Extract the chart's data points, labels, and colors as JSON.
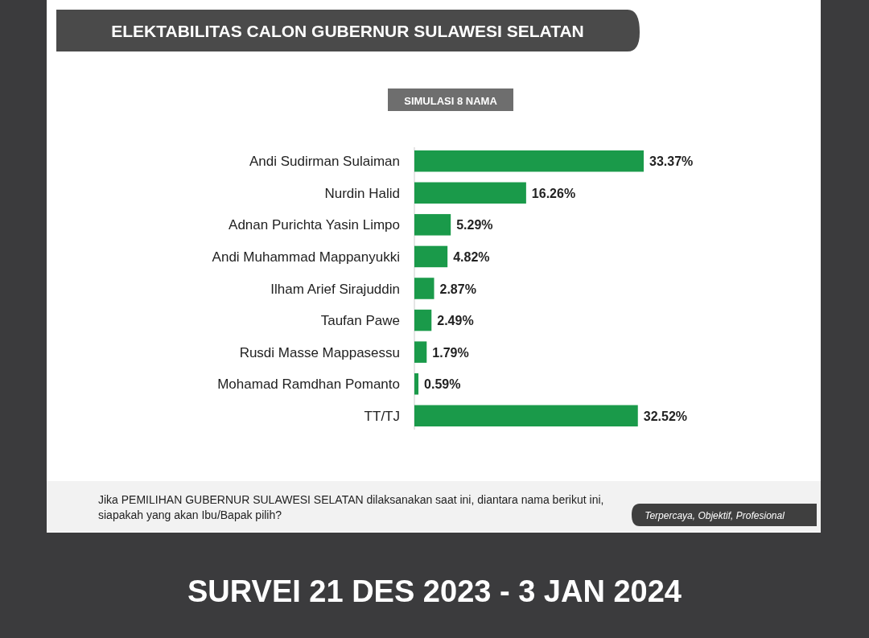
{
  "chart_data": {
    "type": "bar",
    "orientation": "horizontal",
    "title": "ELEKTABILITAS CALON GUBERNUR SULAWESI SELATAN",
    "subtitle": "SIMULASI 8 NAMA",
    "categories": [
      "Andi Sudirman Sulaiman",
      "Nurdin Halid",
      "Adnan Purichta Yasin Limpo",
      "Andi Muhammad Mappanyukki",
      "Ilham Arief Sirajuddin",
      "Taufan Pawe",
      "Rusdi Masse Mappasessu",
      "Mohamad Ramdhan Pomanto",
      "TT/TJ"
    ],
    "values": [
      33.37,
      16.26,
      5.29,
      4.82,
      2.87,
      2.49,
      1.79,
      0.59,
      32.52
    ],
    "value_labels": [
      "33.37%",
      "16.26%",
      "5.29%",
      "4.82%",
      "2.87%",
      "2.49%",
      "1.79%",
      "0.59%",
      "32.52%"
    ],
    "color": "#1a9a4a",
    "annotations": [
      "Jika PEMILIHAN GUBERNUR SULAWESI SELATAN dilaksanakan saat ini, diantara nama berikut ini, siapakah yang akan Ibu/Bapak pilih?",
      "Terpercaya, Objektif, Profesional",
      "SURVEI 21 DES 2023 - 3 JAN 2024"
    ]
  }
}
